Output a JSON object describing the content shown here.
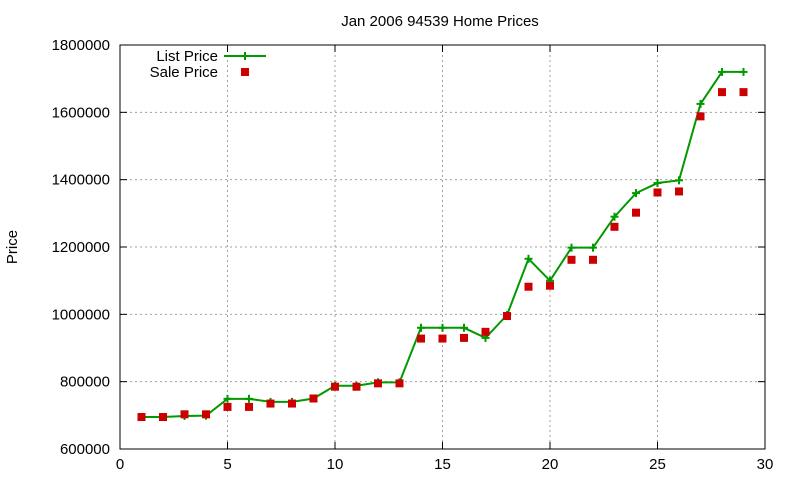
{
  "chart_data": {
    "type": "line",
    "title": "Jan 2006 94539 Home Prices",
    "xlabel": "",
    "ylabel": "Price",
    "xlim": [
      0,
      30
    ],
    "ylim": [
      600000,
      1800000
    ],
    "xticks": [
      "0",
      "5",
      "10",
      "15",
      "20",
      "25",
      "30"
    ],
    "yticks": [
      "600000",
      "800000",
      "1000000",
      "1200000",
      "1400000",
      "1600000",
      "1800000"
    ],
    "grid": true,
    "legend_position": "top-left",
    "series": [
      {
        "name": "List Price",
        "style": "line+cross",
        "color": "#009900",
        "x": [
          1,
          2,
          3,
          4,
          5,
          6,
          7,
          8,
          9,
          10,
          11,
          12,
          13,
          14,
          15,
          16,
          17,
          18,
          19,
          20,
          21,
          22,
          23,
          24,
          25,
          26,
          27,
          28,
          29
        ],
        "y": [
          695000,
          695000,
          698000,
          699000,
          749000,
          749000,
          740000,
          740000,
          750000,
          788000,
          788000,
          798000,
          798000,
          960000,
          960000,
          960000,
          930000,
          998000,
          1165000,
          1100000,
          1198000,
          1198000,
          1290000,
          1360000,
          1390000,
          1398000,
          1625000,
          1720000,
          1720000
        ]
      },
      {
        "name": "Sale Price",
        "style": "square",
        "color": "#cc0000",
        "x": [
          1,
          2,
          3,
          4,
          5,
          6,
          7,
          8,
          9,
          10,
          11,
          12,
          13,
          14,
          15,
          16,
          17,
          18,
          19,
          20,
          21,
          22,
          23,
          24,
          25,
          26,
          27,
          28,
          29
        ],
        "y": [
          695000,
          695000,
          703000,
          703000,
          725000,
          725000,
          735000,
          735000,
          750000,
          785000,
          785000,
          795000,
          795000,
          928000,
          928000,
          930000,
          948000,
          995000,
          1082000,
          1085000,
          1162000,
          1162000,
          1260000,
          1302000,
          1362000,
          1365000,
          1588000,
          1660000,
          1660000
        ]
      }
    ]
  }
}
